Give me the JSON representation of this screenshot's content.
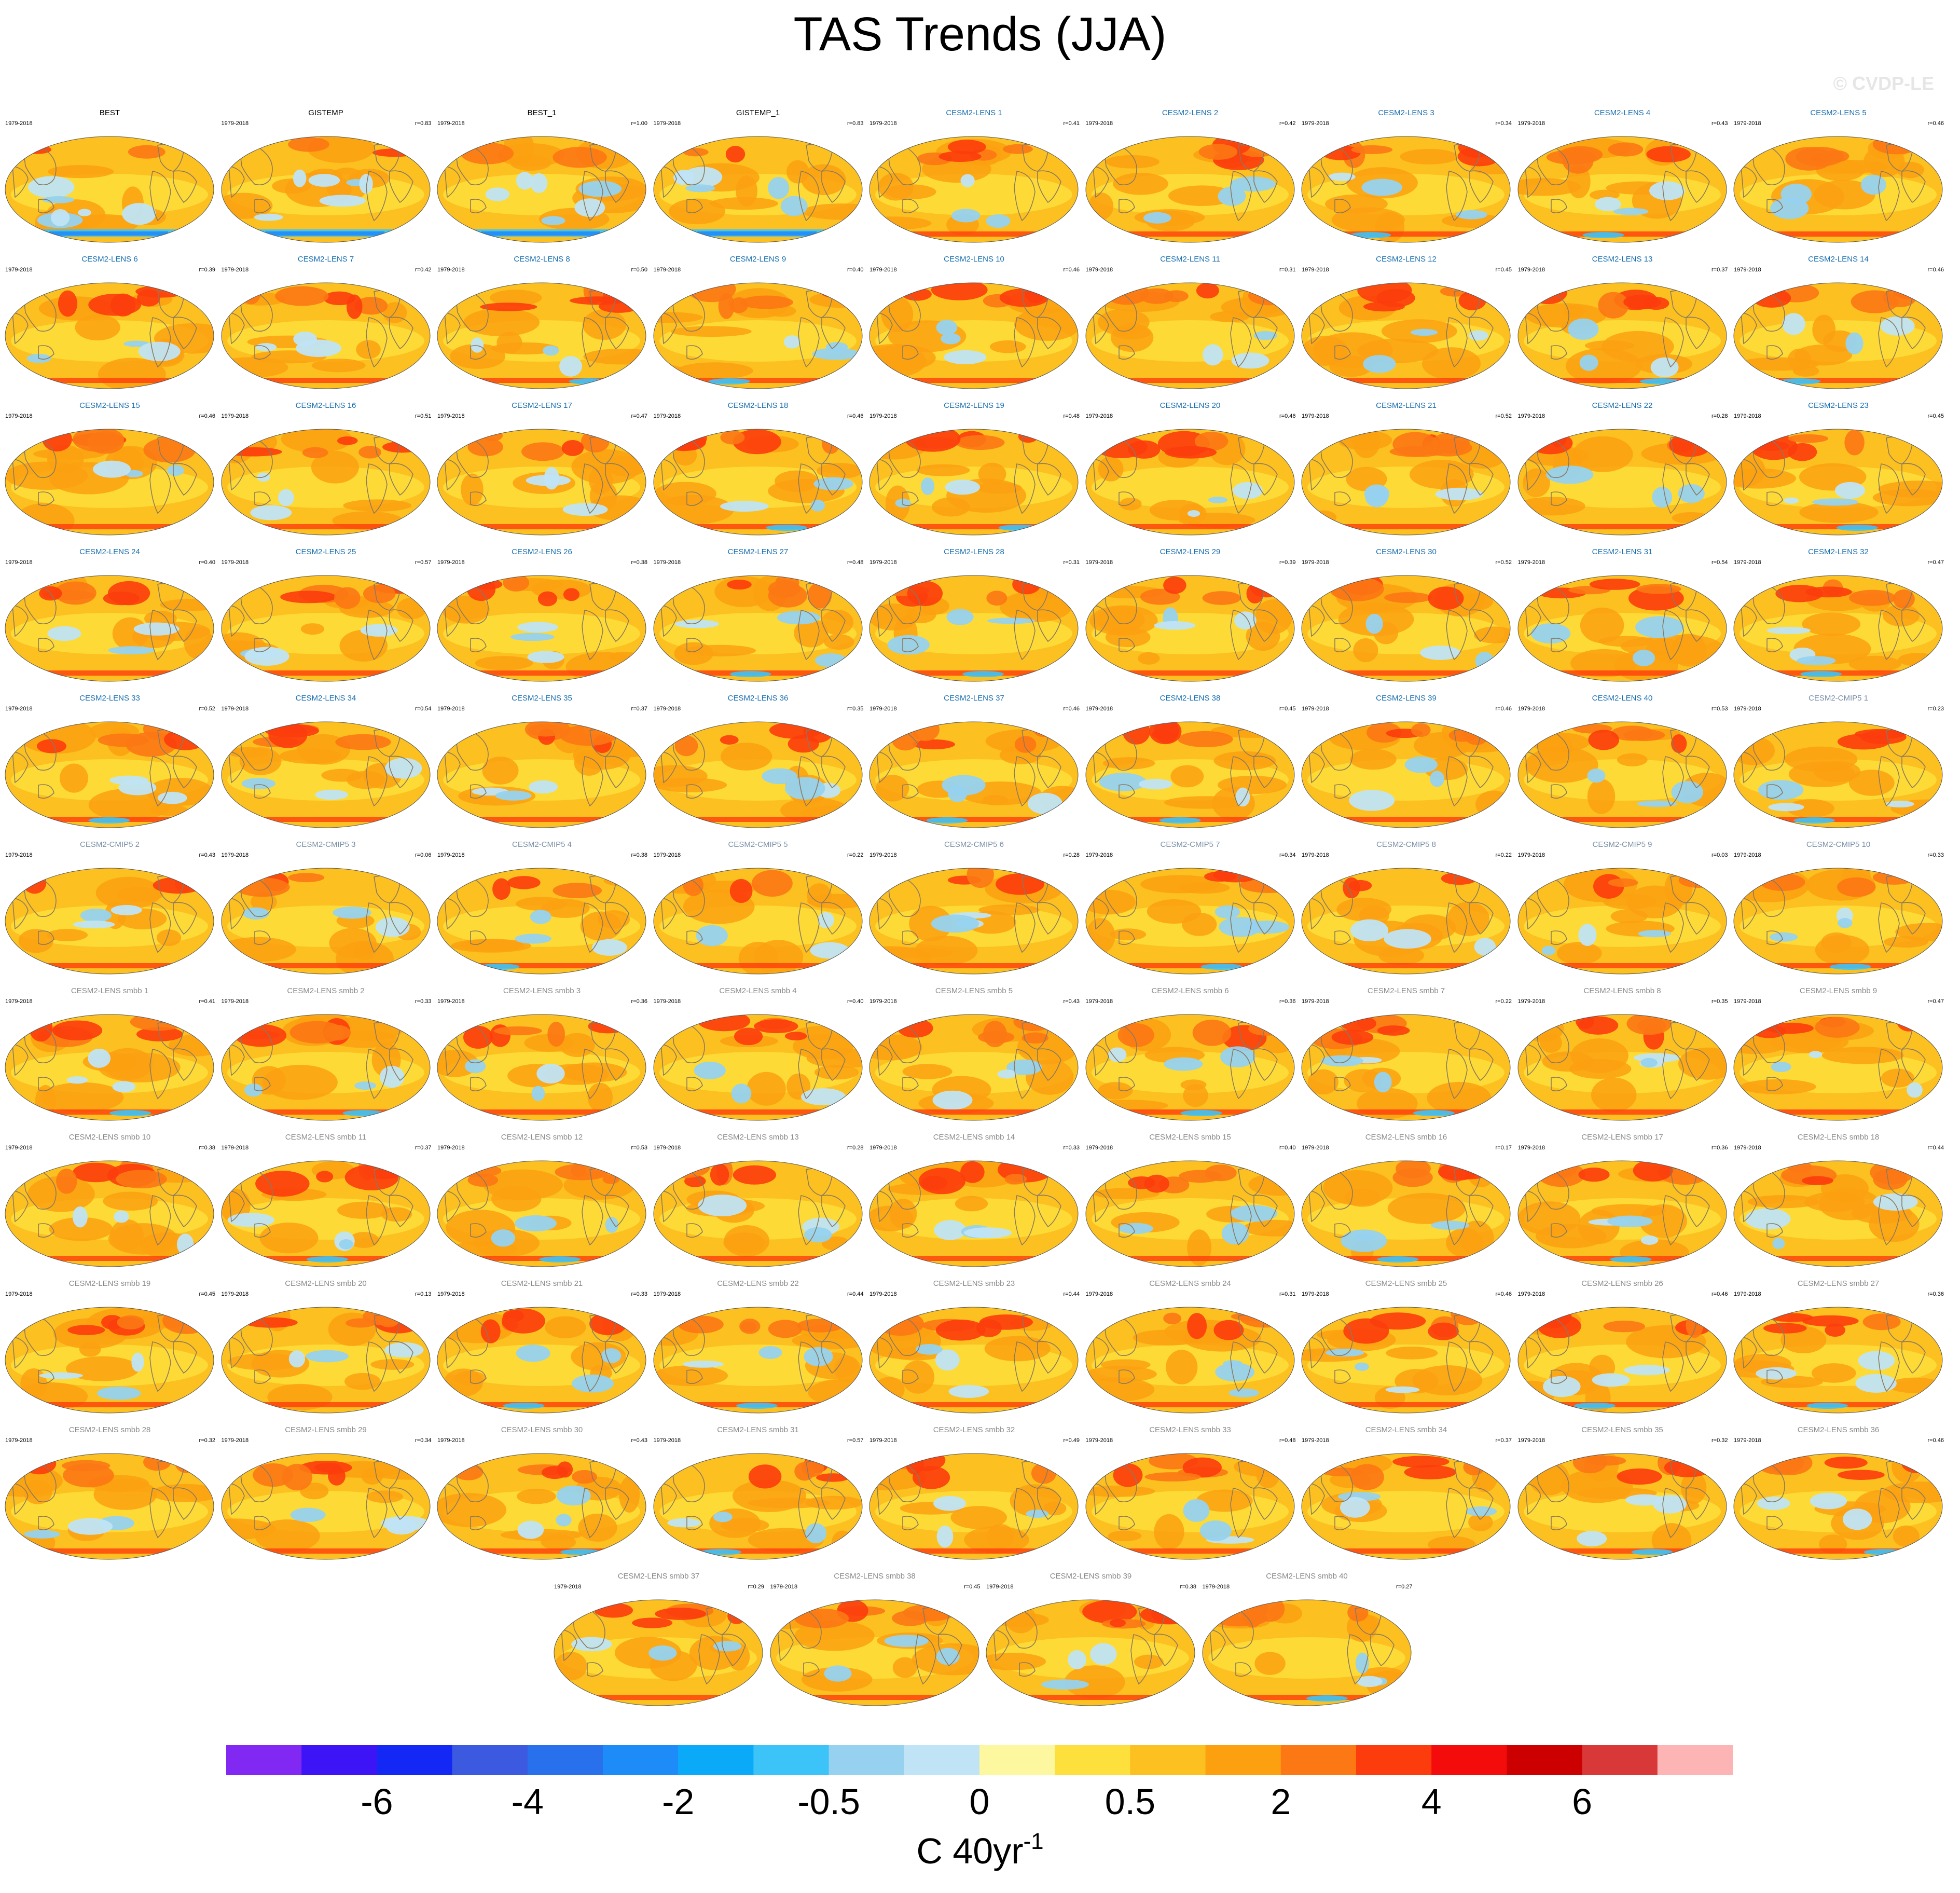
{
  "title": "TAS Trends (JJA)",
  "watermark": "© CVDP-LE",
  "period": "1979-2018",
  "colorbar": {
    "colors": [
      "#8128f2",
      "#3c14f5",
      "#1428f5",
      "#3c5ae0",
      "#2870ec",
      "#1e8cf8",
      "#0aaaf8",
      "#3cc4f8",
      "#96d2f0",
      "#c0e4f6",
      "#fdf8a0",
      "#fde03c",
      "#fcc020",
      "#fca010",
      "#fc7814",
      "#fc3c0c",
      "#f40c0c",
      "#cc0000",
      "#d83838",
      "#fcb4b4"
    ],
    "labels": [
      "-6",
      "-4",
      "-2",
      "-0.5",
      "0",
      "0.5",
      "2",
      "4",
      "6"
    ],
    "units_main": "C 40yr",
    "units_exp": "-1"
  },
  "panels": [
    {
      "name": "BEST",
      "r": "",
      "type": "obs"
    },
    {
      "name": "GISTEMP",
      "r": "r=0.83",
      "type": "obs"
    },
    {
      "name": "BEST_1",
      "r": "r=1.00",
      "type": "obs"
    },
    {
      "name": "GISTEMP_1",
      "r": "r=0.83",
      "type": "obs"
    },
    {
      "name": "CESM2-LENS 1",
      "r": "r=0.41",
      "type": "lens"
    },
    {
      "name": "CESM2-LENS 2",
      "r": "r=0.42",
      "type": "lens"
    },
    {
      "name": "CESM2-LENS 3",
      "r": "r=0.34",
      "type": "lens"
    },
    {
      "name": "CESM2-LENS 4",
      "r": "r=0.43",
      "type": "lens"
    },
    {
      "name": "CESM2-LENS 5",
      "r": "r=0.46",
      "type": "lens"
    },
    {
      "name": "CESM2-LENS 6",
      "r": "r=0.39",
      "type": "lens"
    },
    {
      "name": "CESM2-LENS 7",
      "r": "r=0.42",
      "type": "lens"
    },
    {
      "name": "CESM2-LENS 8",
      "r": "r=0.50",
      "type": "lens"
    },
    {
      "name": "CESM2-LENS 9",
      "r": "r=0.40",
      "type": "lens"
    },
    {
      "name": "CESM2-LENS 10",
      "r": "r=0.46",
      "type": "lens"
    },
    {
      "name": "CESM2-LENS 11",
      "r": "r=0.31",
      "type": "lens"
    },
    {
      "name": "CESM2-LENS 12",
      "r": "r=0.45",
      "type": "lens"
    },
    {
      "name": "CESM2-LENS 13",
      "r": "r=0.37",
      "type": "lens"
    },
    {
      "name": "CESM2-LENS 14",
      "r": "r=0.46",
      "type": "lens"
    },
    {
      "name": "CESM2-LENS 15",
      "r": "r=0.46",
      "type": "lens"
    },
    {
      "name": "CESM2-LENS 16",
      "r": "r=0.51",
      "type": "lens"
    },
    {
      "name": "CESM2-LENS 17",
      "r": "r=0.47",
      "type": "lens"
    },
    {
      "name": "CESM2-LENS 18",
      "r": "r=0.46",
      "type": "lens"
    },
    {
      "name": "CESM2-LENS 19",
      "r": "r=0.48",
      "type": "lens"
    },
    {
      "name": "CESM2-LENS 20",
      "r": "r=0.46",
      "type": "lens"
    },
    {
      "name": "CESM2-LENS 21",
      "r": "r=0.52",
      "type": "lens"
    },
    {
      "name": "CESM2-LENS 22",
      "r": "r=0.28",
      "type": "lens"
    },
    {
      "name": "CESM2-LENS 23",
      "r": "r=0.45",
      "type": "lens"
    },
    {
      "name": "CESM2-LENS 24",
      "r": "r=0.40",
      "type": "lens"
    },
    {
      "name": "CESM2-LENS 25",
      "r": "r=0.57",
      "type": "lens"
    },
    {
      "name": "CESM2-LENS 26",
      "r": "r=0.38",
      "type": "lens"
    },
    {
      "name": "CESM2-LENS 27",
      "r": "r=0.48",
      "type": "lens"
    },
    {
      "name": "CESM2-LENS 28",
      "r": "r=0.31",
      "type": "lens"
    },
    {
      "name": "CESM2-LENS 29",
      "r": "r=0.39",
      "type": "lens"
    },
    {
      "name": "CESM2-LENS 30",
      "r": "r=0.52",
      "type": "lens"
    },
    {
      "name": "CESM2-LENS 31",
      "r": "r=0.54",
      "type": "lens"
    },
    {
      "name": "CESM2-LENS 32",
      "r": "r=0.47",
      "type": "lens"
    },
    {
      "name": "CESM2-LENS 33",
      "r": "r=0.52",
      "type": "lens"
    },
    {
      "name": "CESM2-LENS 34",
      "r": "r=0.54",
      "type": "lens"
    },
    {
      "name": "CESM2-LENS 35",
      "r": "r=0.37",
      "type": "lens"
    },
    {
      "name": "CESM2-LENS 36",
      "r": "r=0.35",
      "type": "lens"
    },
    {
      "name": "CESM2-LENS 37",
      "r": "r=0.46",
      "type": "lens"
    },
    {
      "name": "CESM2-LENS 38",
      "r": "r=0.45",
      "type": "lens"
    },
    {
      "name": "CESM2-LENS 39",
      "r": "r=0.46",
      "type": "lens"
    },
    {
      "name": "CESM2-LENS 40",
      "r": "r=0.53",
      "type": "lens"
    },
    {
      "name": "CESM2-CMIP5 1",
      "r": "r=0.23",
      "type": "cmip"
    },
    {
      "name": "CESM2-CMIP5 2",
      "r": "r=0.43",
      "type": "cmip"
    },
    {
      "name": "CESM2-CMIP5 3",
      "r": "r=0.06",
      "type": "cmip"
    },
    {
      "name": "CESM2-CMIP5 4",
      "r": "r=0.38",
      "type": "cmip"
    },
    {
      "name": "CESM2-CMIP5 5",
      "r": "r=0.22",
      "type": "cmip"
    },
    {
      "name": "CESM2-CMIP5 6",
      "r": "r=0.28",
      "type": "cmip"
    },
    {
      "name": "CESM2-CMIP5 7",
      "r": "r=0.34",
      "type": "cmip"
    },
    {
      "name": "CESM2-CMIP5 8",
      "r": "r=0.22",
      "type": "cmip"
    },
    {
      "name": "CESM2-CMIP5 9",
      "r": "r=0.03",
      "type": "cmip"
    },
    {
      "name": "CESM2-CMIP5 10",
      "r": "r=0.33",
      "type": "cmip"
    },
    {
      "name": "CESM2-LENS smbb 1",
      "r": "r=0.41",
      "type": "smbb"
    },
    {
      "name": "CESM2-LENS smbb 2",
      "r": "r=0.33",
      "type": "smbb"
    },
    {
      "name": "CESM2-LENS smbb 3",
      "r": "r=0.36",
      "type": "smbb"
    },
    {
      "name": "CESM2-LENS smbb 4",
      "r": "r=0.40",
      "type": "smbb"
    },
    {
      "name": "CESM2-LENS smbb 5",
      "r": "r=0.43",
      "type": "smbb"
    },
    {
      "name": "CESM2-LENS smbb 6",
      "r": "r=0.36",
      "type": "smbb"
    },
    {
      "name": "CESM2-LENS smbb 7",
      "r": "r=0.22",
      "type": "smbb"
    },
    {
      "name": "CESM2-LENS smbb 8",
      "r": "r=0.35",
      "type": "smbb"
    },
    {
      "name": "CESM2-LENS smbb 9",
      "r": "r=0.47",
      "type": "smbb"
    },
    {
      "name": "CESM2-LENS smbb 10",
      "r": "r=0.38",
      "type": "smbb"
    },
    {
      "name": "CESM2-LENS smbb 11",
      "r": "r=0.37",
      "type": "smbb"
    },
    {
      "name": "CESM2-LENS smbb 12",
      "r": "r=0.53",
      "type": "smbb"
    },
    {
      "name": "CESM2-LENS smbb 13",
      "r": "r=0.28",
      "type": "smbb"
    },
    {
      "name": "CESM2-LENS smbb 14",
      "r": "r=0.33",
      "type": "smbb"
    },
    {
      "name": "CESM2-LENS smbb 15",
      "r": "r=0.40",
      "type": "smbb"
    },
    {
      "name": "CESM2-LENS smbb 16",
      "r": "r=0.17",
      "type": "smbb"
    },
    {
      "name": "CESM2-LENS smbb 17",
      "r": "r=0.36",
      "type": "smbb"
    },
    {
      "name": "CESM2-LENS smbb 18",
      "r": "r=0.44",
      "type": "smbb"
    },
    {
      "name": "CESM2-LENS smbb 19",
      "r": "r=0.45",
      "type": "smbb"
    },
    {
      "name": "CESM2-LENS smbb 20",
      "r": "r=0.13",
      "type": "smbb"
    },
    {
      "name": "CESM2-LENS smbb 21",
      "r": "r=0.33",
      "type": "smbb"
    },
    {
      "name": "CESM2-LENS smbb 22",
      "r": "r=0.44",
      "type": "smbb"
    },
    {
      "name": "CESM2-LENS smbb 23",
      "r": "r=0.44",
      "type": "smbb"
    },
    {
      "name": "CESM2-LENS smbb 24",
      "r": "r=0.31",
      "type": "smbb"
    },
    {
      "name": "CESM2-LENS smbb 25",
      "r": "r=0.46",
      "type": "smbb"
    },
    {
      "name": "CESM2-LENS smbb 26",
      "r": "r=0.46",
      "type": "smbb"
    },
    {
      "name": "CESM2-LENS smbb 27",
      "r": "r=0.36",
      "type": "smbb"
    },
    {
      "name": "CESM2-LENS smbb 28",
      "r": "r=0.32",
      "type": "smbb"
    },
    {
      "name": "CESM2-LENS smbb 29",
      "r": "r=0.34",
      "type": "smbb"
    },
    {
      "name": "CESM2-LENS smbb 30",
      "r": "r=0.43",
      "type": "smbb"
    },
    {
      "name": "CESM2-LENS smbb 31",
      "r": "r=0.57",
      "type": "smbb"
    },
    {
      "name": "CESM2-LENS smbb 32",
      "r": "r=0.49",
      "type": "smbb"
    },
    {
      "name": "CESM2-LENS smbb 33",
      "r": "r=0.48",
      "type": "smbb"
    },
    {
      "name": "CESM2-LENS smbb 34",
      "r": "r=0.37",
      "type": "smbb"
    },
    {
      "name": "CESM2-LENS smbb 35",
      "r": "r=0.32",
      "type": "smbb"
    },
    {
      "name": "CESM2-LENS smbb 36",
      "r": "r=0.46",
      "type": "smbb"
    },
    {
      "name": "CESM2-LENS smbb 37",
      "r": "r=0.29",
      "type": "smbb"
    },
    {
      "name": "CESM2-LENS smbb 38",
      "r": "r=0.45",
      "type": "smbb"
    },
    {
      "name": "CESM2-LENS smbb 39",
      "r": "r=0.38",
      "type": "smbb"
    },
    {
      "name": "CESM2-LENS smbb 40",
      "r": "r=0.27",
      "type": "smbb"
    }
  ],
  "title_colors": {
    "obs": "#000000",
    "lens": "#1a6fb0",
    "cmip": "#7a8fa8",
    "smbb": "#8a8a8a"
  }
}
